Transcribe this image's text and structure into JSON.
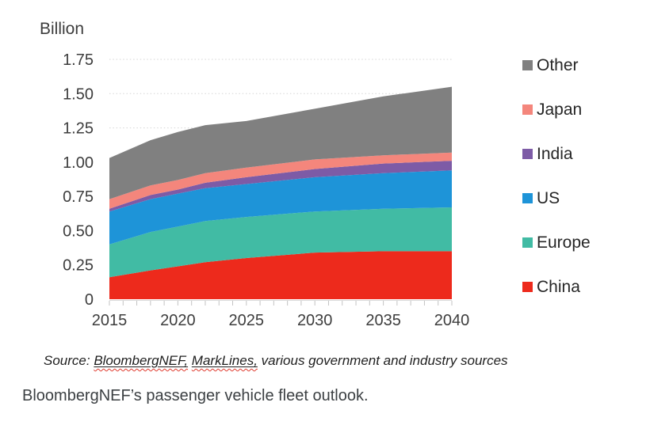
{
  "chart_data": {
    "type": "area",
    "stacked": true,
    "y_axis_title": "Billion",
    "x": [
      2015,
      2018,
      2020,
      2022,
      2025,
      2030,
      2035,
      2040
    ],
    "x_tick_labels": [
      "2015",
      "2020",
      "2025",
      "2030",
      "2035",
      "2040"
    ],
    "x_minor_tick_step_years": 1,
    "xlim": [
      2015,
      2040
    ],
    "ylim": [
      0,
      1.75
    ],
    "grid": "dotted horizontal",
    "legend_position": "right",
    "series": [
      {
        "name": "China",
        "color": "#ED2A1C",
        "values": [
          0.16,
          0.21,
          0.24,
          0.27,
          0.3,
          0.34,
          0.35,
          0.35
        ]
      },
      {
        "name": "Europe",
        "color": "#41BBA4",
        "values": [
          0.24,
          0.28,
          0.29,
          0.3,
          0.3,
          0.3,
          0.31,
          0.32
        ]
      },
      {
        "name": "US",
        "color": "#1E94D8",
        "values": [
          0.24,
          0.24,
          0.24,
          0.24,
          0.24,
          0.25,
          0.26,
          0.27
        ]
      },
      {
        "name": "India",
        "color": "#7D5BA6",
        "values": [
          0.02,
          0.03,
          0.03,
          0.04,
          0.05,
          0.06,
          0.07,
          0.07
        ]
      },
      {
        "name": "Japan",
        "color": "#F4867C",
        "values": [
          0.07,
          0.07,
          0.07,
          0.07,
          0.07,
          0.07,
          0.06,
          0.06
        ]
      },
      {
        "name": "Other",
        "color": "#808080",
        "values": [
          0.3,
          0.33,
          0.35,
          0.35,
          0.34,
          0.37,
          0.43,
          0.48
        ]
      }
    ],
    "stacked_totals": [
      1.03,
      1.16,
      1.22,
      1.27,
      1.3,
      1.39,
      1.48,
      1.55
    ],
    "y_ticks": {
      "values": [
        0,
        0.25,
        0.5,
        0.75,
        1,
        1.25,
        1.5,
        1.75
      ],
      "labels": [
        "0",
        "0.25",
        "0.50",
        "0.75",
        "1.00",
        "1.25",
        "1.50",
        "1.75"
      ]
    }
  },
  "legend": {
    "items": [
      {
        "label": "Other",
        "color": "#808080"
      },
      {
        "label": "Japan",
        "color": "#F4867C"
      },
      {
        "label": "India",
        "color": "#7D5BA6"
      },
      {
        "label": "US",
        "color": "#1E94D8"
      },
      {
        "label": "Europe",
        "color": "#41BBA4"
      },
      {
        "label": "China",
        "color": "#ED2A1C"
      }
    ]
  },
  "source_line": {
    "prefix": "Source: ",
    "cited_1": "BloombergNEF,",
    "sep": " ",
    "cited_2": "MarkLines,",
    "suffix": " various government and industry sources",
    "squiggle_color": "#df3a2e"
  },
  "caption": "BloombergNEF’s passenger vehicle fleet outlook."
}
